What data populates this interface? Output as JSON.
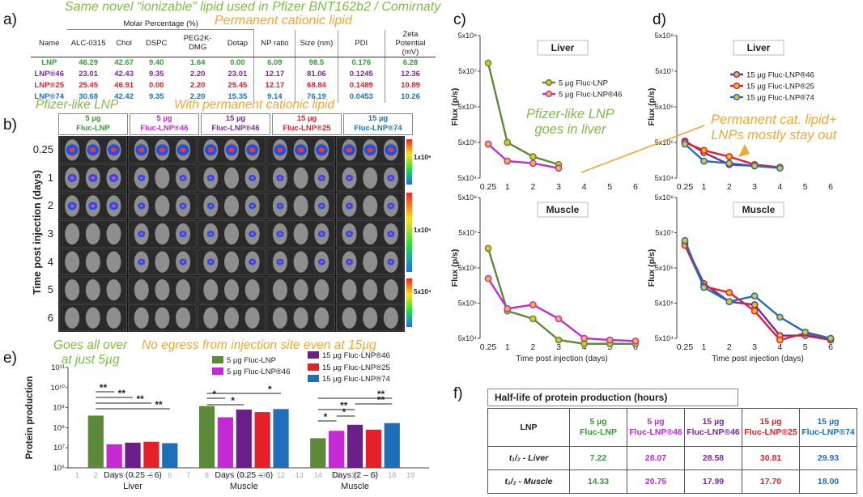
{
  "panel_labels": {
    "a": "a)",
    "b": "b)",
    "c": "c)",
    "d": "d)",
    "e": "e)",
    "f": "f)"
  },
  "callouts": {
    "top_green": "Same novel “ionizable”  lipid used in Pfizer BNT162b2 / Comirnaty",
    "top_orange": "Permanent cationic lipid",
    "pfizer_like": "Pfizer-like LNP",
    "with_perm": "With permanent cationic lipid",
    "goes_in_liver": "Pfizer-like LNP\ngoes in liver",
    "stay_out": "Permanent cat. lipid+\nLNPs mostly stay out",
    "all_over": "Goes all over\nat just 5µg",
    "no_egress": "No egress from injection site even at 15µg"
  },
  "colors": {
    "lnp": "#3a9a3a",
    "f46a": "#c42ad4",
    "f46b": "#7a2a9a",
    "f25": "#e5202a",
    "f74": "#1f6fb8",
    "green_bar": "#5a8a3a",
    "orange": "#f0a832",
    "callout_green": "#7dbd45"
  },
  "table_a": {
    "header_group": "Molar Percentage (%)",
    "cols": [
      "Name",
      "ALC-0315",
      "Chol",
      "DSPC",
      "PEG2K-DMG",
      "Dotap",
      "NP ratio",
      "Size (nm)",
      "PDI",
      "Zeta Potential (mV)"
    ],
    "rows": [
      {
        "name": "LNP",
        "vals": [
          "46.29",
          "42.67",
          "9.40",
          "1.64",
          "0.00",
          "6.09",
          "98.5",
          "0.176",
          "6.28"
        ],
        "color": "#3a9a3a"
      },
      {
        "name": "LNP®46",
        "vals": [
          "23.01",
          "42.43",
          "9.35",
          "2.20",
          "23.01",
          "12.17",
          "81.06",
          "0.1245",
          "12.36"
        ],
        "color": "#7a2a9a"
      },
      {
        "name": "LNP®25",
        "vals": [
          "25.45",
          "46.91",
          "0.00",
          "2.20",
          "25.45",
          "12.17",
          "68.84",
          "0.1489",
          "10.89"
        ],
        "color": "#e5202a"
      },
      {
        "name": "LNP®74",
        "vals": [
          "30.68",
          "42.42",
          "9.35",
          "2.20",
          "15.35",
          "9.14",
          "76.19",
          "0.0453",
          "10.26"
        ],
        "color": "#1f6fb8"
      }
    ]
  },
  "panel_b": {
    "groups": [
      {
        "dose": "5 µg",
        "name": "Fluc-LNP",
        "color": "#3a9a3a"
      },
      {
        "dose": "5 µg",
        "name": "Fluc-LNP®46",
        "color": "#c42ad4"
      },
      {
        "dose": "15 µg",
        "name": "Fluc-LNP®46",
        "color": "#7a2a9a"
      },
      {
        "dose": "15 µg",
        "name": "Fluc-LNP®25",
        "color": "#e5202a"
      },
      {
        "dose": "15 µg",
        "name": "Fluc-LNP®74",
        "color": "#1f6fb8"
      }
    ],
    "rows": [
      "0.25",
      "1",
      "2",
      "3",
      "4",
      "5",
      "6"
    ],
    "ylabel": "Time post injection (days)",
    "scale_labels": [
      "1x10⁶",
      "1x10⁵",
      "5x10⁴"
    ]
  },
  "chart_data": [
    {
      "type": "line",
      "panel": "c",
      "title": "Liver",
      "ylabel": "Flux (p/s)",
      "y_log": true,
      "ylim": [
        50000,
        500000000
      ],
      "yticks": [
        "5x10⁴",
        "5x10⁵",
        "5x10⁶",
        "5x10⁷",
        "5x10⁸"
      ],
      "x": [
        "0.25",
        "1",
        "2",
        "3",
        "4",
        "5",
        "6"
      ],
      "series": [
        {
          "name": "5 µg  Fluc-LNP",
          "color": "#5a8a3a",
          "points": [
            [
              0.25,
              85000000
            ],
            [
              1,
              500000
            ],
            [
              2,
              200000
            ],
            [
              3,
              120000
            ]
          ]
        },
        {
          "name": "5 µg  Fluc-LNP®46",
          "color": "#c42ad4",
          "points": [
            [
              0.25,
              450000
            ],
            [
              1,
              150000
            ],
            [
              2,
              130000
            ],
            [
              3,
              95000
            ]
          ]
        }
      ]
    },
    {
      "type": "line",
      "panel": "c",
      "title": "Muscle",
      "xlabel": "Time post injection (days)",
      "ylabel": "Flux (p/s)",
      "y_log": true,
      "ylim": [
        50000,
        500000000
      ],
      "yticks": [
        "5x10⁴",
        "5x10⁵",
        "5x10⁶",
        "5x10⁷",
        "5x10⁸"
      ],
      "x": [
        "0.25",
        "1",
        "2",
        "3",
        "4",
        "5",
        "6"
      ],
      "series": [
        {
          "name": "5 µg  Fluc-LNP",
          "color": "#5a8a3a",
          "points": [
            [
              0.25,
              18000000
            ],
            [
              1,
              300000
            ],
            [
              2,
              180000
            ],
            [
              3,
              45000
            ],
            [
              4,
              35000
            ],
            [
              5,
              35000
            ],
            [
              6,
              35000
            ]
          ]
        },
        {
          "name": "5 µg  Fluc-LNP®46",
          "color": "#c42ad4",
          "points": [
            [
              0.25,
              2500000
            ],
            [
              1,
              350000
            ],
            [
              2,
              450000
            ],
            [
              3,
              180000
            ],
            [
              4,
              50000
            ],
            [
              5,
              45000
            ],
            [
              6,
              42000
            ]
          ]
        }
      ]
    },
    {
      "type": "line",
      "panel": "d",
      "title": "Liver",
      "ylabel": "Flux (p/s)",
      "y_log": true,
      "ylim": [
        50000,
        500000000
      ],
      "yticks": [
        "5x10⁴",
        "5x10⁵",
        "5x10⁶",
        "5x10⁷",
        "5x10⁸"
      ],
      "x": [
        "0.25",
        "1",
        "2",
        "3",
        "4",
        "5",
        "6"
      ],
      "series": [
        {
          "name": "15 µg  Fluc-LNP®46",
          "color": "#7a2a9a",
          "points": [
            [
              0.25,
              550000
            ],
            [
              1,
              260000
            ],
            [
              2,
              120000
            ],
            [
              3,
              110000
            ],
            [
              4,
              100000
            ]
          ]
        },
        {
          "name": "15 µg  Fluc-LNP®25",
          "color": "#e5202a",
          "points": [
            [
              0.25,
              500000
            ],
            [
              1,
              300000
            ],
            [
              2,
              200000
            ],
            [
              3,
              120000
            ],
            [
              4,
              100000
            ]
          ]
        },
        {
          "name": "15 µg  Fluc-LNP®74",
          "color": "#1f6fb8",
          "points": [
            [
              0.25,
              450000
            ],
            [
              1,
              150000
            ],
            [
              2,
              130000
            ],
            [
              3,
              110000
            ],
            [
              4,
              95000
            ]
          ]
        }
      ]
    },
    {
      "type": "line",
      "panel": "d",
      "title": "Muscle",
      "xlabel": "Time post injection (days)",
      "ylabel": "Flux (p/s)",
      "y_log": true,
      "ylim": [
        50000,
        500000000
      ],
      "yticks": [
        "5x10⁴",
        "5x10⁵",
        "5x10⁶",
        "5x10⁷",
        "5x10⁸"
      ],
      "x": [
        "0.25",
        "1",
        "2",
        "3",
        "4",
        "5",
        "6"
      ],
      "series": [
        {
          "name": "15 µg  Fluc-LNP®46",
          "color": "#7a2a9a",
          "points": [
            [
              0.25,
              25000000
            ],
            [
              1,
              1800000
            ],
            [
              2,
              550000
            ],
            [
              3,
              450000
            ],
            [
              4,
              60000
            ],
            [
              5,
              60000
            ],
            [
              6,
              45000
            ]
          ]
        },
        {
          "name": "15 µg  Fluc-LNP®25",
          "color": "#e5202a",
          "points": [
            [
              0.25,
              22000000
            ],
            [
              1,
              1500000
            ],
            [
              2,
              1000000
            ],
            [
              3,
              300000
            ],
            [
              4,
              45000
            ],
            [
              5,
              70000
            ],
            [
              6,
              45000
            ]
          ]
        },
        {
          "name": "15 µg  Fluc-LNP®74",
          "color": "#1f6fb8",
          "points": [
            [
              0.25,
              30000000
            ],
            [
              1,
              1400000
            ],
            [
              2,
              550000
            ],
            [
              3,
              800000
            ],
            [
              4,
              200000
            ],
            [
              5,
              75000
            ],
            [
              6,
              50000
            ]
          ]
        }
      ]
    },
    {
      "type": "bar",
      "panel": "e",
      "ylabel": "Protein production",
      "y_log": true,
      "ylim": [
        1000000,
        100000000000
      ],
      "yticks": [
        "10⁶",
        "10⁷",
        "10⁸",
        "10⁹",
        "10¹⁰",
        "10¹¹"
      ],
      "groups": [
        {
          "label": "Days (0.25 – 6)",
          "tissue": "Liver"
        },
        {
          "label": "Days (0.25 – 6)",
          "tissue": "Muscle"
        },
        {
          "label": "Days (2 – 6)",
          "tissue": "Muscle"
        }
      ],
      "series": [
        {
          "name": "5 µg  Fluc-LNP",
          "color": "#5a8a3a",
          "values": [
            400000000,
            1200000000,
            30000000
          ]
        },
        {
          "name": "5 µg  Fluc-LNP®46",
          "color": "#c42ad4",
          "values": [
            15000000,
            330000000,
            70000000
          ]
        },
        {
          "name": "15 µg Fluc-LNP®46",
          "color": "#6a1f8a",
          "values": [
            18000000,
            800000000,
            140000000
          ]
        },
        {
          "name": "15 µg Fluc-LNP®25",
          "color": "#e5202a",
          "values": [
            20000000,
            600000000,
            80000000
          ]
        },
        {
          "name": "15 µg Fluc-LNP®74",
          "color": "#1f6fb8",
          "values": [
            17000000,
            850000000,
            170000000
          ]
        }
      ],
      "x_tick_numbers": [
        "1",
        "2",
        "3",
        "4",
        "5",
        "6",
        "7",
        "8",
        "9",
        "10",
        "11",
        "12",
        "13",
        "14",
        "15",
        "16",
        "17",
        "18",
        "19"
      ],
      "sig_labels": [
        "**",
        "**",
        "**",
        "**",
        "*",
        "*",
        "*",
        "**",
        "**",
        "**",
        "*",
        "*"
      ]
    }
  ],
  "table_f": {
    "title": "Half-life of protein production (hours)",
    "header_label": "LNP",
    "headers": [
      {
        "dose": "5 µg",
        "name": "Fluc-LNP",
        "color": "#3a9a3a"
      },
      {
        "dose": "5 µg",
        "name": "Fluc-LNP®46",
        "color": "#c42ad4"
      },
      {
        "dose": "15 µg",
        "name": "Fluc-LNP®46",
        "color": "#7a2a9a"
      },
      {
        "dose": "15 µg",
        "name": "Fluc-LNP®25",
        "color": "#e5202a"
      },
      {
        "dose": "15 µg",
        "name": "Fluc-LNP®74",
        "color": "#1f6fb8"
      }
    ],
    "rows": [
      {
        "label": "t₁/₂ - Liver",
        "vals": [
          "7.22",
          "28.07",
          "28.58",
          "30.81",
          "29.93"
        ]
      },
      {
        "label": "t₁/₂ - Muscle",
        "vals": [
          "14.33",
          "20.75",
          "17.99",
          "17.70",
          "18.00"
        ]
      }
    ]
  }
}
